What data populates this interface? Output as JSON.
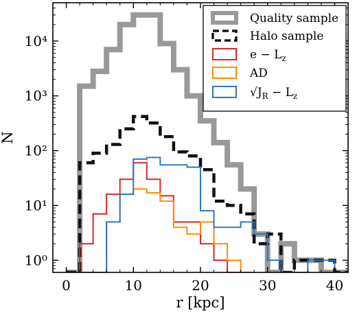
{
  "chart_data": {
    "type": "histogram",
    "xlabel": "r [kpc]",
    "ylabel": "N",
    "xlim": [
      -2,
      42
    ],
    "ylim": [
      0.6,
      50000
    ],
    "yscale": "log",
    "xticks": [
      0,
      10,
      20,
      30,
      40
    ],
    "xtick_labels": [
      "0",
      "10",
      "20",
      "30",
      "40"
    ],
    "yticks": [
      1,
      10,
      100,
      1000,
      10000
    ],
    "ytick_labels": [
      "10⁰",
      "10¹",
      "10²",
      "10³",
      "10⁴"
    ],
    "bin_width": 2,
    "grid": false,
    "legend_position": "top-right",
    "series": [
      {
        "name": "Quality sample",
        "color": "#999999",
        "style": "thick",
        "bin_edges": [
          0,
          2,
          4,
          6,
          8,
          10,
          12,
          14,
          16,
          18,
          20,
          22,
          24,
          26,
          28,
          30,
          32,
          34,
          36,
          38,
          40
        ],
        "counts": [
          0,
          1500,
          2800,
          7000,
          20000,
          30000,
          30000,
          9000,
          3000,
          1000,
          350,
          140,
          55,
          20,
          3,
          0.6,
          2,
          1,
          1,
          0,
          0
        ]
      },
      {
        "name": "Halo sample",
        "color": "#111111",
        "style": "dashed",
        "bin_edges": [
          0,
          2,
          4,
          6,
          8,
          10,
          12,
          14,
          16,
          18,
          20,
          22,
          24,
          26,
          28,
          30,
          32,
          34,
          36,
          38,
          40
        ],
        "counts": [
          0,
          60,
          90,
          130,
          250,
          420,
          320,
          180,
          95,
          80,
          45,
          12,
          10,
          7,
          2,
          3,
          0.6,
          1,
          1,
          1,
          0
        ]
      },
      {
        "name": "e − L_z",
        "label_main": "e − L",
        "label_sub": "z",
        "color": "#d62728",
        "style": "solid",
        "bin_edges": [
          0,
          2,
          4,
          6,
          8,
          10,
          12,
          14,
          16,
          18,
          20,
          22,
          24,
          26,
          28
        ],
        "counts": [
          0,
          2,
          7,
          16,
          30,
          60,
          30,
          15,
          5,
          5,
          2,
          1,
          0,
          0
        ]
      },
      {
        "name": "AD",
        "color": "#ff8c00",
        "style": "solid",
        "bin_edges": [
          0,
          2,
          4,
          6,
          8,
          10,
          12,
          14,
          16,
          18,
          20,
          22,
          24,
          26,
          28
        ],
        "counts": [
          0,
          0,
          0,
          5,
          16,
          20,
          17,
          12,
          4,
          3,
          5,
          2,
          1,
          0
        ]
      },
      {
        "name": "√J_R − L_z",
        "label_main": "√J",
        "label_sub1": "R",
        "label_mid": " − L",
        "label_sub2": "z",
        "color": "#2b78c2",
        "style": "solid",
        "bin_edges": [
          0,
          2,
          4,
          6,
          8,
          10,
          12,
          14,
          16,
          18,
          20,
          22,
          24,
          26,
          28,
          30,
          32,
          34,
          36,
          38,
          40
        ],
        "counts": [
          0,
          0,
          0,
          5,
          16,
          70,
          75,
          55,
          55,
          50,
          8,
          4,
          4,
          5,
          3,
          1,
          0,
          0,
          1,
          1,
          0
        ]
      }
    ]
  }
}
